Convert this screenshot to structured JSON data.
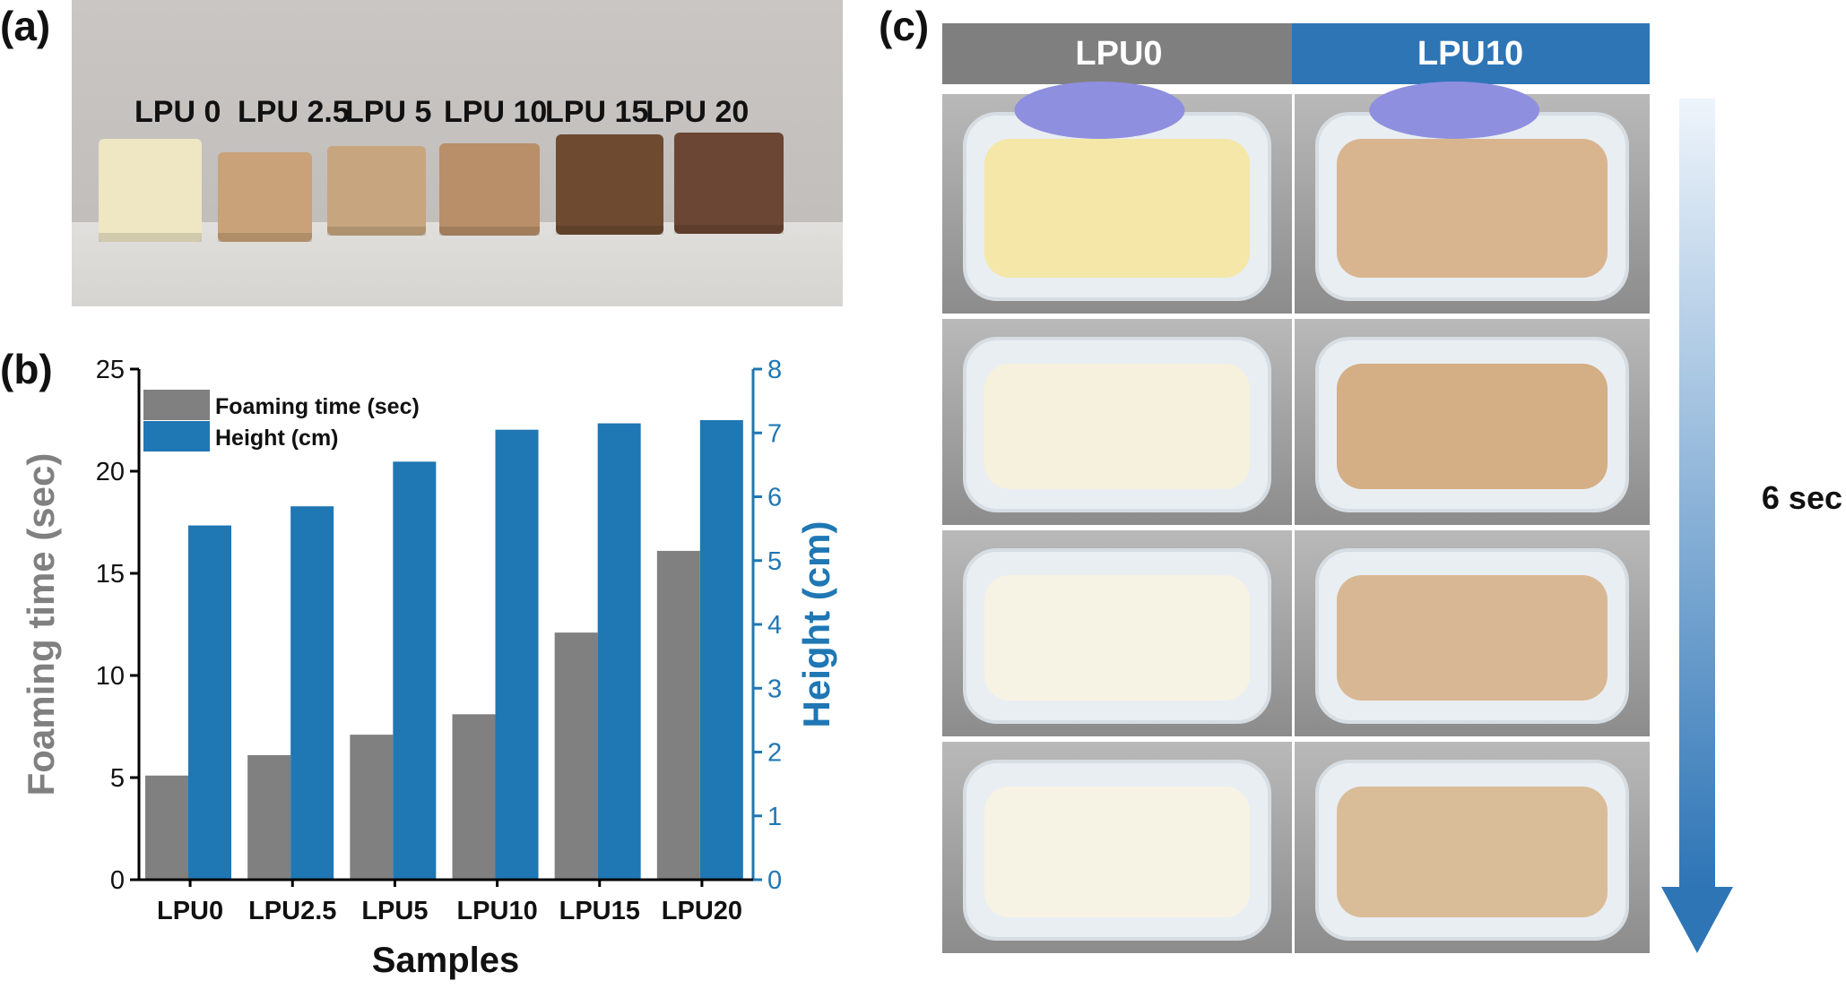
{
  "panels": {
    "a_label": "(a)",
    "b_label": "(b)",
    "c_label": "(c)"
  },
  "panel_a": {
    "samples": [
      "LPU 0",
      "LPU 2.5",
      "LPU 5",
      "LPU 10",
      "LPU 15",
      "LPU 20"
    ],
    "sample_colors": [
      "#efe6c4",
      "#c9a279",
      "#c7a57f",
      "#b88f68",
      "#6e4a30",
      "#6b4634"
    ]
  },
  "panel_c": {
    "columns": [
      "LPU0",
      "LPU10"
    ],
    "header_colors": [
      "#7f7f7f",
      "#2e75b6"
    ],
    "time_label": "6 sec",
    "foam_colors": {
      "LPU0": [
        "#f4e7a8",
        "#f6f1dd",
        "#f7f3e4",
        "#f7f3e4"
      ],
      "LPU10": [
        "#d9b58f",
        "#d4ae85",
        "#d8b894",
        "#d9bd98"
      ]
    }
  },
  "chart_data": {
    "type": "bar",
    "categories": [
      "LPU0",
      "LPU2.5",
      "LPU5",
      "LPU10",
      "LPU15",
      "LPU20"
    ],
    "series": [
      {
        "name": "Foaming time (sec)",
        "axis": "left",
        "color": "#808080",
        "values": [
          5.1,
          6.1,
          7.1,
          8.1,
          12.1,
          16.1
        ]
      },
      {
        "name": "Height (cm)",
        "axis": "right",
        "color": "#1f77b4",
        "values": [
          5.55,
          5.85,
          6.55,
          7.05,
          7.15,
          7.2
        ]
      }
    ],
    "xlabel": "Samples",
    "ylabel": "Foaming time (sec)",
    "y2label": "Height (cm)",
    "ylim": [
      0,
      25
    ],
    "y2lim": [
      0,
      8
    ],
    "yticks": [
      0,
      5,
      10,
      15,
      20,
      25
    ],
    "y2ticks": [
      0,
      1,
      2,
      3,
      4,
      5,
      6,
      7,
      8
    ],
    "legend_position": "top-left",
    "grid": false
  }
}
